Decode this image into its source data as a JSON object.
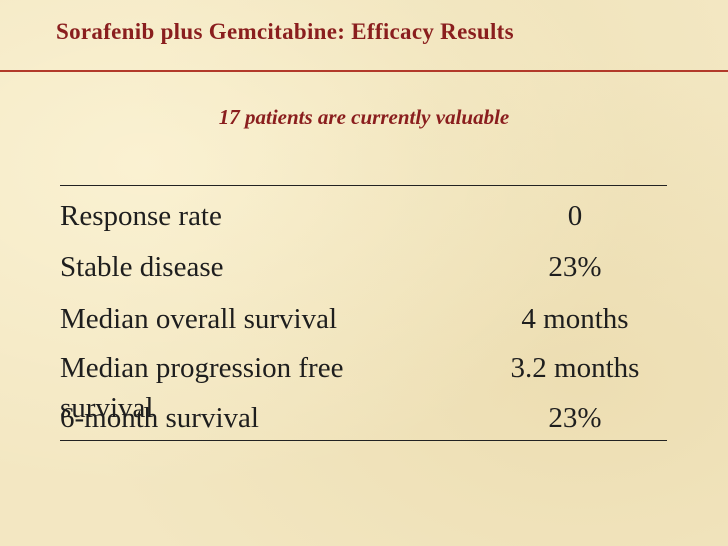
{
  "slide": {
    "title": "Sorafenib plus Gemcitabine: Efficacy Results",
    "subtitle": "17 patients are currently valuable"
  },
  "table": {
    "rows": [
      {
        "label": "Response rate",
        "value": "0"
      },
      {
        "label": "Stable disease",
        "value": "23%"
      },
      {
        "label": "Median overall survival",
        "value": "4 months"
      },
      {
        "label": "Median progression free survival",
        "value": "3.2 months"
      },
      {
        "label": "6-month survival",
        "value": "23%"
      }
    ]
  }
}
